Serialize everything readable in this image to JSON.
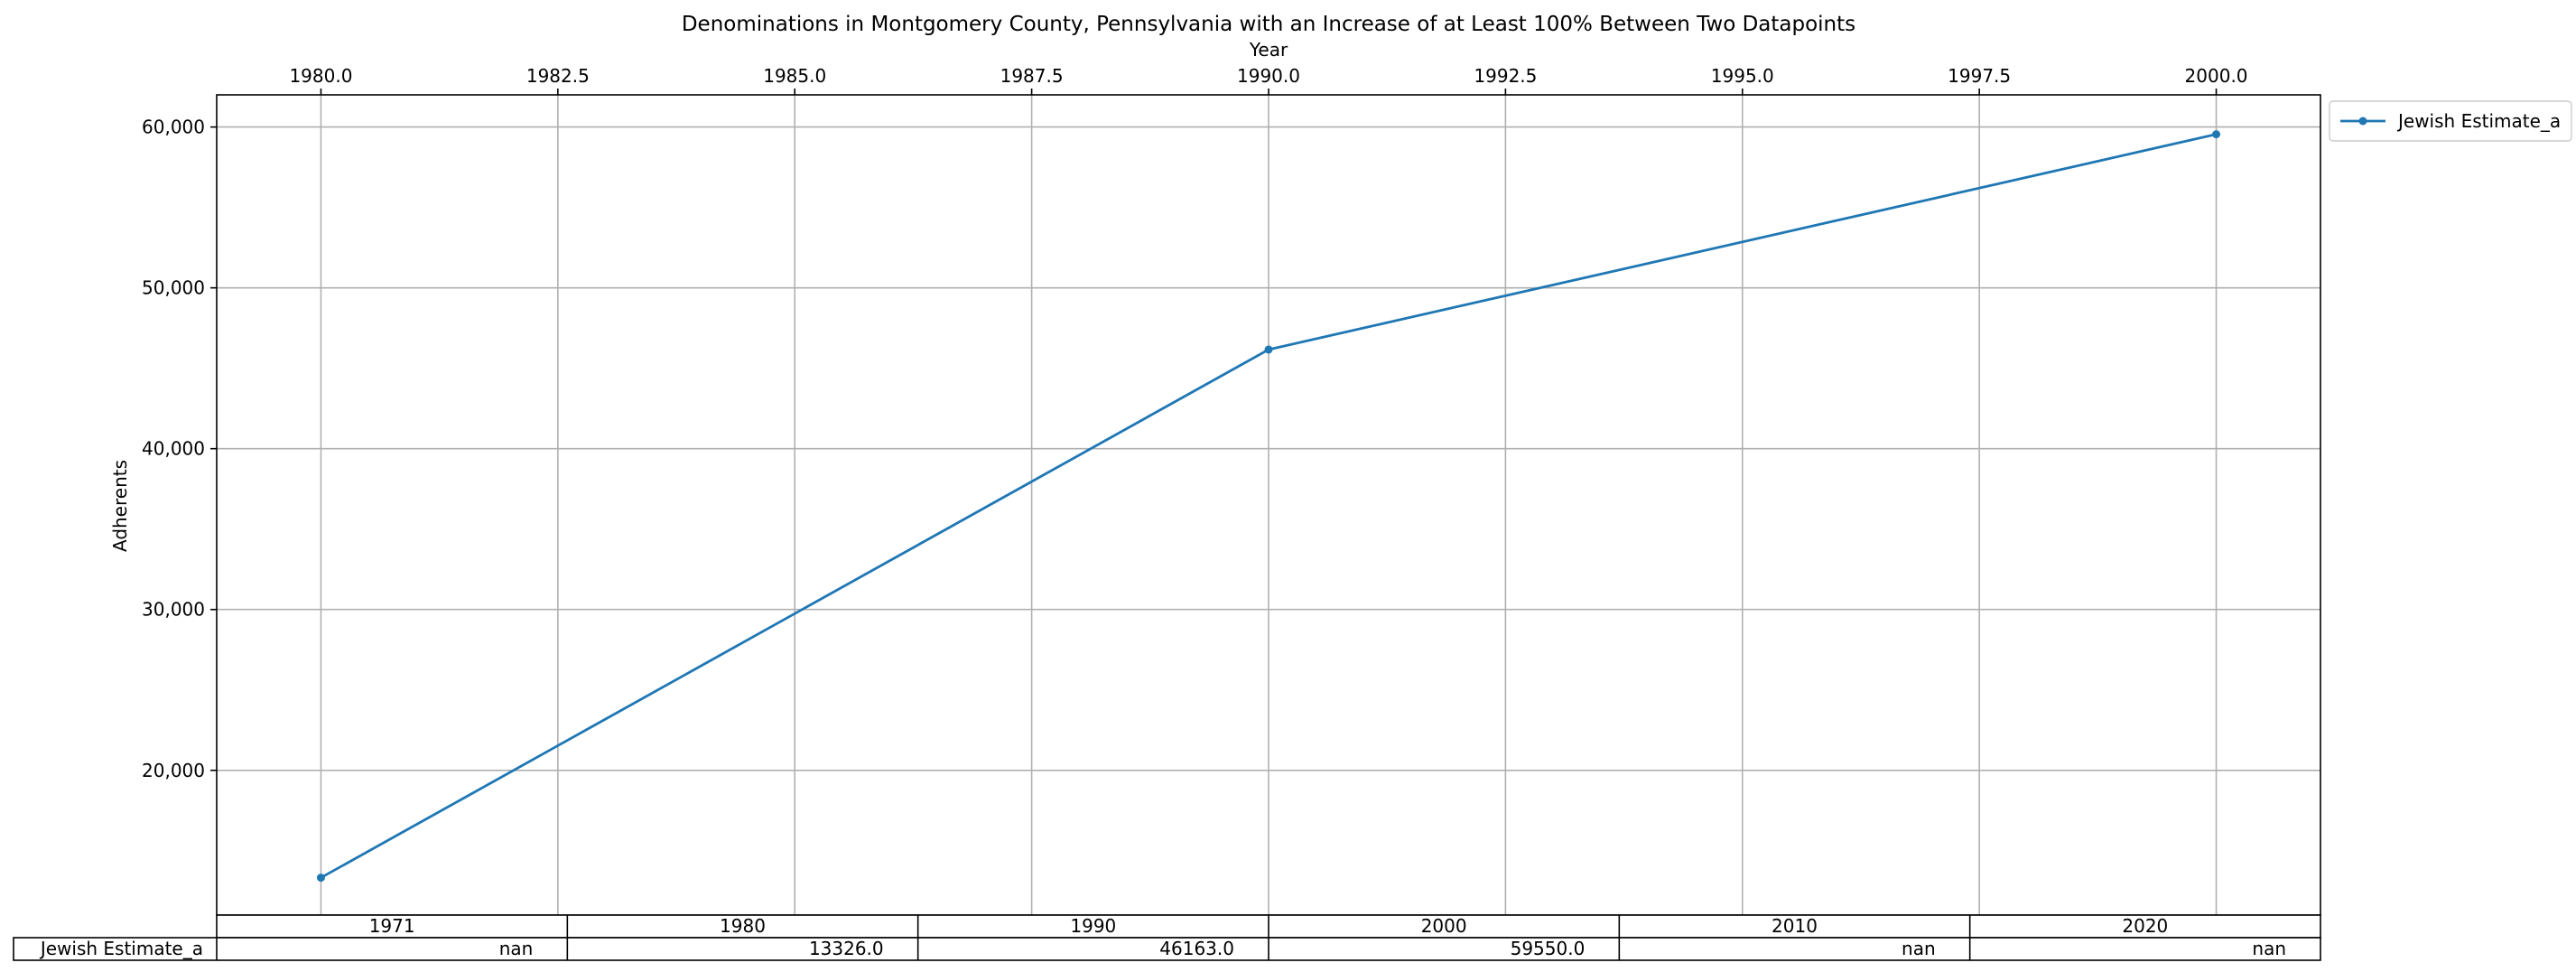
{
  "chart_data": {
    "type": "line",
    "title": "Denominations in Montgomery County, Pennsylvania with an Increase of at Least 100% Between Two Datapoints",
    "xlabel": "Year",
    "ylabel": "Adherents",
    "xlim": [
      1978.9,
      2001.1
    ],
    "ylim": [
      11000,
      62000
    ],
    "x_ticks": [
      "1980.0",
      "1982.5",
      "1985.0",
      "1987.5",
      "1990.0",
      "1992.5",
      "1995.0",
      "1997.5",
      "2000.0"
    ],
    "x_tick_values": [
      1980,
      1982.5,
      1985,
      1987.5,
      1990,
      1992.5,
      1995,
      1997.5,
      2000
    ],
    "x_axis_position": "top",
    "y_ticks": [
      "20,000",
      "30,000",
      "40,000",
      "50,000",
      "60,000"
    ],
    "y_tick_values": [
      20000,
      30000,
      40000,
      50000,
      60000
    ],
    "grid": true,
    "legend_position": "outside-top-right",
    "series": [
      {
        "name": "Jewish Estimate_a",
        "color": "#1f77b4",
        "marker": "dot",
        "x": [
          1980,
          1990,
          2000
        ],
        "y": [
          13326,
          46163,
          59550
        ]
      }
    ],
    "table": {
      "columns": [
        "1971",
        "1980",
        "1990",
        "2000",
        "2010",
        "2020"
      ],
      "rows": [
        {
          "label": "Jewish Estimate_a",
          "cells": [
            "nan",
            "13326.0",
            "46163.0",
            "59550.0",
            "nan",
            "nan"
          ]
        }
      ]
    }
  }
}
